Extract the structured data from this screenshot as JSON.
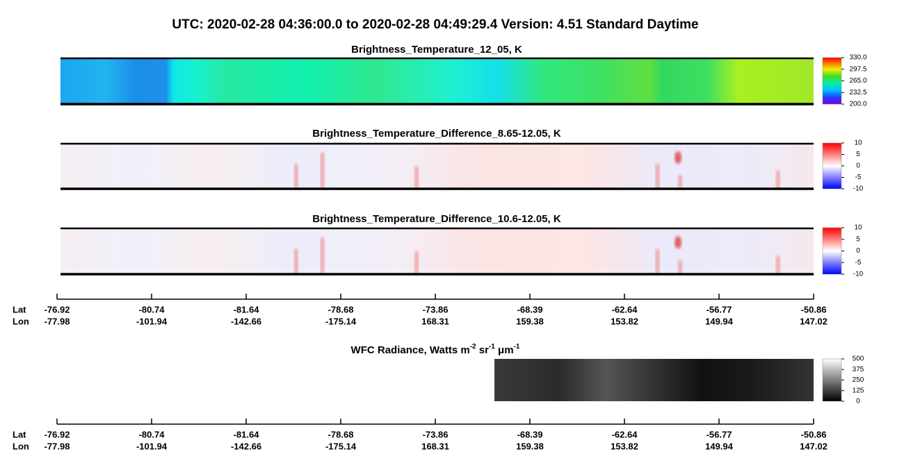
{
  "title": "UTC:  2020-02-28   04:36:00.0  to  2020-02-28   04:49:29.4    Version: 4.51  Standard Daytime",
  "panels": [
    {
      "title": "Brightness_Temperature_12_05, K",
      "colorbar": {
        "lim": [
          200,
          330
        ],
        "ticks": [
          {
            "value": 330,
            "label": "330.0"
          },
          {
            "value": 297.5,
            "label": "297.5"
          },
          {
            "value": 265,
            "label": "265.0"
          },
          {
            "value": 232.5,
            "label": "232.5"
          },
          {
            "value": 200,
            "label": "200.0"
          }
        ]
      }
    },
    {
      "title": "Brightness_Temperature_Difference_8.65-12.05, K",
      "colorbar": {
        "lim": [
          -10,
          10
        ],
        "ticks": [
          10,
          5,
          0,
          -5,
          -10
        ]
      }
    },
    {
      "title": "Brightness_Temperature_Difference_10.6-12.05, K",
      "colorbar": {
        "lim": [
          -10,
          10
        ],
        "ticks": [
          10,
          5,
          0,
          -5,
          -10
        ]
      }
    }
  ],
  "wfc": {
    "title": [
      "WFC Radiance, Watts m",
      "-2",
      " sr",
      "-1",
      " μm",
      "-1"
    ],
    "colorbar": {
      "lim": [
        0,
        500
      ],
      "ticks": [
        500,
        375,
        250,
        125,
        0
      ]
    }
  },
  "axes": [
    {
      "lat_label": "Lat",
      "lon_label": "Lon",
      "lat": [
        -76.92,
        -80.74,
        -81.64,
        -78.68,
        -73.86,
        -68.39,
        -62.64,
        -56.77,
        -50.86
      ],
      "lon": [
        -77.98,
        -101.94,
        -142.66,
        -175.14,
        168.31,
        159.38,
        153.82,
        149.94,
        147.02
      ]
    },
    {
      "lat_label": "Lat",
      "lon_label": "Lon",
      "lat": [
        -76.92,
        -80.74,
        -81.64,
        -78.68,
        -73.86,
        -68.39,
        -62.64,
        -56.77,
        -50.86
      ],
      "lon": [
        -77.98,
        -101.94,
        -142.66,
        -175.14,
        168.31,
        159.38,
        153.82,
        149.94,
        147.02
      ]
    }
  ]
}
